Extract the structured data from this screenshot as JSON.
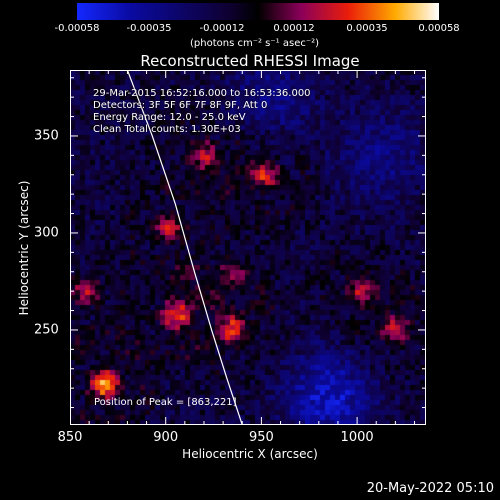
{
  "colorbar": {
    "ticks": [
      "-0.00058",
      "-0.00035",
      "-0.00012",
      "0.00012",
      "0.00035",
      "0.00058"
    ],
    "unit_label": "(photons cm⁻² s⁻¹ asec⁻²)"
  },
  "chart_data": {
    "type": "heatmap",
    "title": "Reconstructed RHESSI Image",
    "xlabel": "Heliocentric X (arcsec)",
    "ylabel": "Heliocentric Y (arcsec)",
    "xlim": [
      850,
      1036
    ],
    "ylim": [
      201,
      384
    ],
    "xticks": [
      850,
      900,
      950,
      1000
    ],
    "yticks": [
      250,
      300,
      350
    ],
    "zlim": [
      -0.00058,
      0.00058
    ],
    "annotations": {
      "time_range": "29-Mar-2015 16:52:16.000 to 16:53:36.000",
      "detectors": "Detectors: 3F 5F 6F 7F 8F 9F, Att 0",
      "energy_range": "Energy Range: 12.0 - 25.0 keV",
      "clean_counts": "Clean     Total counts: 1.30E+03",
      "peak": "Position of Peak = [863,221]"
    },
    "peak_position": [
      863,
      221
    ],
    "limb_curve": {
      "x": [
        880,
        893,
        905,
        915,
        924,
        932,
        940
      ],
      "y": [
        384,
        350,
        315,
        280,
        250,
        225,
        201
      ]
    },
    "hotspots": [
      {
        "x": 902,
        "y": 302,
        "intensity": 0.00035
      },
      {
        "x": 920,
        "y": 340,
        "intensity": 0.00035
      },
      {
        "x": 952,
        "y": 330,
        "intensity": 0.0004
      },
      {
        "x": 858,
        "y": 270,
        "intensity": 0.0003
      },
      {
        "x": 905,
        "y": 258,
        "intensity": 0.00045
      },
      {
        "x": 935,
        "y": 250,
        "intensity": 0.0004
      },
      {
        "x": 1002,
        "y": 270,
        "intensity": 0.0003
      },
      {
        "x": 1020,
        "y": 250,
        "intensity": 0.0003
      },
      {
        "x": 868,
        "y": 222,
        "intensity": 0.00058
      },
      {
        "x": 935,
        "y": 280,
        "intensity": 0.00025
      }
    ],
    "coldspots": [
      {
        "x": 985,
        "y": 215,
        "intensity": -0.00035
      },
      {
        "x": 1012,
        "y": 340,
        "intensity": -0.0002
      },
      {
        "x": 955,
        "y": 370,
        "intensity": -0.0002
      }
    ]
  },
  "footer": {
    "datestamp": "20-May-2022 05:10"
  }
}
